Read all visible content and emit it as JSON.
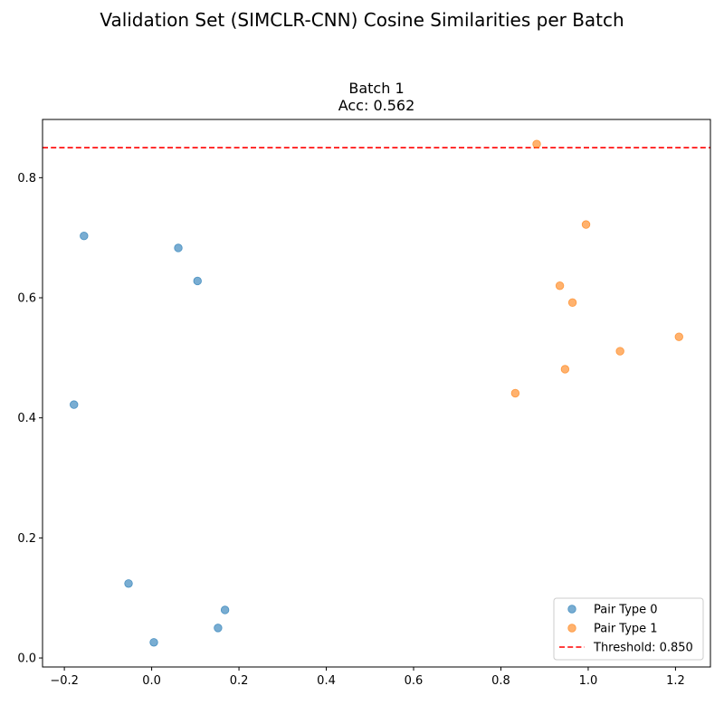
{
  "suptitle": "Validation Set (SIMCLR-CNN) Cosine Similarities per Batch",
  "chart_data": {
    "type": "scatter",
    "title_lines": [
      "Batch 1",
      "Acc: 0.562"
    ],
    "xlabel": "",
    "ylabel": "",
    "xlim": [
      -0.25,
      1.28
    ],
    "ylim": [
      -0.015,
      0.897
    ],
    "x_ticks": [
      -0.2,
      0.0,
      0.2,
      0.4,
      0.6,
      0.8,
      1.0,
      1.2
    ],
    "x_tick_labels": [
      "−0.2",
      "0.0",
      "0.2",
      "0.4",
      "0.6",
      "0.8",
      "1.0",
      "1.2"
    ],
    "y_ticks": [
      0.0,
      0.2,
      0.4,
      0.6,
      0.8
    ],
    "y_tick_labels": [
      "0.0",
      "0.2",
      "0.4",
      "0.6",
      "0.8"
    ],
    "grid": false,
    "legend_position": "bottom-right",
    "series": [
      {
        "name": "Pair Type 0",
        "color": "#1f77b4",
        "points": [
          {
            "x": -0.155,
            "y": 0.703
          },
          {
            "x": 0.061,
            "y": 0.683
          },
          {
            "x": 0.105,
            "y": 0.628
          },
          {
            "x": -0.178,
            "y": 0.422
          },
          {
            "x": -0.053,
            "y": 0.124
          },
          {
            "x": 0.168,
            "y": 0.08
          },
          {
            "x": 0.152,
            "y": 0.05
          },
          {
            "x": 0.005,
            "y": 0.026
          }
        ]
      },
      {
        "name": "Pair Type 1",
        "color": "#ff7f0e",
        "points": [
          {
            "x": 0.882,
            "y": 0.856
          },
          {
            "x": 0.995,
            "y": 0.722
          },
          {
            "x": 0.935,
            "y": 0.62
          },
          {
            "x": 0.964,
            "y": 0.592
          },
          {
            "x": 1.208,
            "y": 0.535
          },
          {
            "x": 1.073,
            "y": 0.511
          },
          {
            "x": 0.947,
            "y": 0.481
          },
          {
            "x": 0.833,
            "y": 0.441
          }
        ]
      }
    ],
    "threshold": {
      "value": 0.85,
      "label": "Threshold: 0.850",
      "color": "#ff0000",
      "style": "dashed"
    }
  }
}
